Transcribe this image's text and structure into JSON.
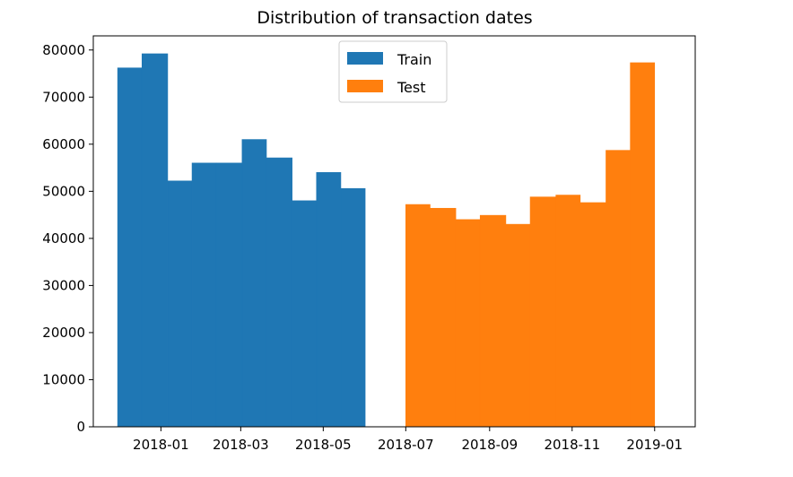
{
  "chart_data": {
    "type": "bar",
    "title": "Distribution of transaction dates",
    "xlabel": "",
    "ylabel": "",
    "x_axis": {
      "type": "date",
      "range": [
        "2017-11-12",
        "2019-01-31"
      ],
      "tick_values": [
        "2018-01-01",
        "2018-03-01",
        "2018-05-01",
        "2018-07-01",
        "2018-09-01",
        "2018-11-01",
        "2019-01-01"
      ],
      "tick_labels": [
        "2018-01",
        "2018-03",
        "2018-05",
        "2018-07",
        "2018-09",
        "2018-11",
        "2019-01"
      ]
    },
    "ylim": [
      0,
      83000
    ],
    "y_ticks": [
      0,
      10000,
      20000,
      30000,
      40000,
      50000,
      60000,
      70000,
      80000
    ],
    "y_tick_labels": [
      "0",
      "10000",
      "20000",
      "30000",
      "40000",
      "50000",
      "60000",
      "70000",
      "80000"
    ],
    "grid": false,
    "legend_placement": "top-center",
    "series": [
      {
        "name": "Train",
        "color": "#1f77b4",
        "bins": [
          {
            "start": "2017-11-30",
            "end": "2017-12-18",
            "value": 76200
          },
          {
            "start": "2017-12-18",
            "end": "2018-01-06",
            "value": 79200
          },
          {
            "start": "2018-01-06",
            "end": "2018-01-24",
            "value": 52200
          },
          {
            "start": "2018-01-24",
            "end": "2018-02-11",
            "value": 56000
          },
          {
            "start": "2018-02-11",
            "end": "2018-03-02",
            "value": 56000
          },
          {
            "start": "2018-03-02",
            "end": "2018-03-20",
            "value": 61000
          },
          {
            "start": "2018-03-20",
            "end": "2018-04-08",
            "value": 57100
          },
          {
            "start": "2018-04-08",
            "end": "2018-04-26",
            "value": 48000
          },
          {
            "start": "2018-04-26",
            "end": "2018-05-14",
            "value": 54000
          },
          {
            "start": "2018-05-14",
            "end": "2018-06-01",
            "value": 50600
          }
        ]
      },
      {
        "name": "Test",
        "color": "#ff7f0e",
        "bins": [
          {
            "start": "2018-07-01",
            "end": "2018-07-19",
            "value": 47200
          },
          {
            "start": "2018-07-19",
            "end": "2018-08-07",
            "value": 46400
          },
          {
            "start": "2018-08-07",
            "end": "2018-08-25",
            "value": 44000
          },
          {
            "start": "2018-08-25",
            "end": "2018-09-13",
            "value": 44900
          },
          {
            "start": "2018-09-13",
            "end": "2018-10-01",
            "value": 43000
          },
          {
            "start": "2018-10-01",
            "end": "2018-10-20",
            "value": 48800
          },
          {
            "start": "2018-10-20",
            "end": "2018-11-07",
            "value": 49200
          },
          {
            "start": "2018-11-07",
            "end": "2018-11-26",
            "value": 47600
          },
          {
            "start": "2018-11-26",
            "end": "2018-12-14",
            "value": 58700
          },
          {
            "start": "2018-12-14",
            "end": "2019-01-01",
            "value": 77300
          }
        ]
      }
    ]
  }
}
